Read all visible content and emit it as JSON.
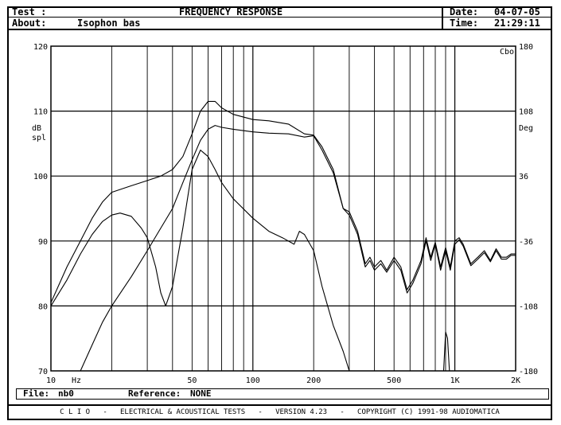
{
  "header": {
    "test_label": "Test :",
    "title": "FREQUENCY RESPONSE",
    "date_label": "Date:",
    "date_value": "04-07-05",
    "about_label": "About:",
    "about_value": "Isophon bas",
    "time_label": "Time:",
    "time_value": "21:29:11"
  },
  "footer": {
    "file_label": "File:",
    "file_value": "nb0",
    "reference_label": "Reference:",
    "reference_value": "NONE",
    "copyright": "C L I O   -   ELECTRICAL & ACOUSTICAL TESTS   -   VERSION 4.23   -   COPYRIGHT (C) 1991-98 AUDIOMATICA"
  },
  "chart_data": {
    "type": "line",
    "x_scale": "log",
    "xlim": [
      10,
      2000
    ],
    "ylim": [
      70,
      120
    ],
    "y2lim": [
      -180,
      180
    ],
    "ylabel": "dB spl",
    "y2label": "Deg",
    "y2_top_label": "Cbo",
    "x_unit_label": "Hz",
    "x_tick_labels": [
      {
        "x": 10,
        "label": "10"
      },
      {
        "x": 50,
        "label": "50"
      },
      {
        "x": 100,
        "label": "100"
      },
      {
        "x": 200,
        "label": "200"
      },
      {
        "x": 500,
        "label": "500"
      },
      {
        "x": 1000,
        "label": "1K"
      },
      {
        "x": 2000,
        "label": "2K"
      }
    ],
    "y_ticks": [
      70,
      80,
      90,
      100,
      110,
      120
    ],
    "y2_ticks": [
      -180,
      -108,
      -36,
      36,
      108,
      180
    ],
    "grid": true,
    "series": [
      {
        "values": [
          [
            10,
            80.5
          ],
          [
            12,
            86
          ],
          [
            14,
            90
          ],
          [
            16,
            93.5
          ],
          [
            18,
            96
          ],
          [
            20,
            97.5
          ],
          [
            25,
            98.5
          ],
          [
            30,
            99.3
          ],
          [
            35,
            100
          ],
          [
            40,
            101
          ],
          [
            45,
            103
          ],
          [
            50,
            106.5
          ],
          [
            55,
            110
          ],
          [
            60,
            111.5
          ],
          [
            65,
            111.5
          ],
          [
            70,
            110.5
          ],
          [
            80,
            109.5
          ],
          [
            100,
            108.7
          ],
          [
            120,
            108.5
          ],
          [
            150,
            108
          ],
          [
            180,
            106.5
          ],
          [
            200,
            106.3
          ],
          [
            220,
            104.5
          ],
          [
            250,
            101
          ],
          [
            280,
            95
          ],
          [
            300,
            94.5
          ],
          [
            330,
            91.5
          ],
          [
            360,
            86.5
          ],
          [
            380,
            87.5
          ],
          [
            400,
            86
          ],
          [
            430,
            87
          ],
          [
            460,
            85.5
          ],
          [
            500,
            87.5
          ],
          [
            540,
            86
          ],
          [
            580,
            82.5
          ],
          [
            620,
            84
          ],
          [
            680,
            87
          ],
          [
            720,
            90.5
          ],
          [
            760,
            87.5
          ],
          [
            800,
            89.8
          ],
          [
            850,
            86
          ],
          [
            900,
            89
          ],
          [
            950,
            86
          ],
          [
            1000,
            90
          ],
          [
            1050,
            90.5
          ],
          [
            1100,
            89.5
          ],
          [
            1200,
            86.5
          ],
          [
            1300,
            87.5
          ],
          [
            1400,
            88.5
          ],
          [
            1500,
            87
          ],
          [
            1600,
            88.8
          ],
          [
            1700,
            87.5
          ],
          [
            1800,
            87.5
          ],
          [
            1900,
            88
          ],
          [
            2000,
            88
          ]
        ]
      },
      {
        "values": [
          [
            14,
            70
          ],
          [
            16,
            74
          ],
          [
            18,
            77.5
          ],
          [
            20,
            80
          ],
          [
            25,
            84.5
          ],
          [
            30,
            88.5
          ],
          [
            35,
            92
          ],
          [
            40,
            95
          ],
          [
            45,
            99
          ],
          [
            50,
            102.5
          ],
          [
            55,
            105.5
          ],
          [
            60,
            107.2
          ],
          [
            65,
            107.8
          ],
          [
            70,
            107.5
          ],
          [
            80,
            107.2
          ],
          [
            100,
            106.8
          ],
          [
            120,
            106.6
          ],
          [
            150,
            106.5
          ],
          [
            180,
            106
          ],
          [
            200,
            106.2
          ],
          [
            220,
            104
          ],
          [
            250,
            100.5
          ],
          [
            280,
            95
          ],
          [
            300,
            94
          ],
          [
            330,
            91
          ],
          [
            360,
            86
          ],
          [
            380,
            87
          ],
          [
            400,
            85.5
          ],
          [
            430,
            86.5
          ],
          [
            460,
            85.2
          ],
          [
            500,
            87
          ],
          [
            540,
            85.5
          ],
          [
            580,
            82
          ],
          [
            620,
            83.5
          ],
          [
            680,
            86.5
          ],
          [
            720,
            90
          ],
          [
            760,
            87
          ],
          [
            800,
            89.5
          ],
          [
            850,
            85.5
          ],
          [
            900,
            88.5
          ],
          [
            950,
            85.5
          ],
          [
            1000,
            89.5
          ],
          [
            1050,
            90.2
          ],
          [
            1100,
            89.2
          ],
          [
            1200,
            86.2
          ],
          [
            1300,
            87.2
          ],
          [
            1400,
            88.2
          ],
          [
            1500,
            86.8
          ],
          [
            1600,
            88.5
          ],
          [
            1700,
            87.2
          ],
          [
            1800,
            87.2
          ],
          [
            1900,
            87.8
          ],
          [
            2000,
            87.8
          ]
        ]
      },
      {
        "values": [
          [
            10,
            80
          ],
          [
            12,
            84
          ],
          [
            14,
            88
          ],
          [
            16,
            91
          ],
          [
            18,
            93
          ],
          [
            20,
            94
          ],
          [
            22,
            94.3
          ],
          [
            25,
            93.8
          ],
          [
            28,
            92
          ],
          [
            30,
            90.5
          ],
          [
            33,
            86
          ],
          [
            35,
            82
          ],
          [
            37,
            80
          ],
          [
            40,
            83
          ],
          [
            45,
            92
          ],
          [
            50,
            101
          ],
          [
            55,
            104
          ],
          [
            60,
            103
          ],
          [
            65,
            101
          ],
          [
            70,
            99
          ],
          [
            80,
            96.5
          ],
          [
            100,
            93.5
          ],
          [
            120,
            91.5
          ],
          [
            140,
            90.5
          ],
          [
            160,
            89.5
          ],
          [
            170,
            91.5
          ],
          [
            180,
            91
          ],
          [
            200,
            88.5
          ],
          [
            220,
            83
          ],
          [
            250,
            77
          ],
          [
            280,
            73
          ],
          [
            300,
            70
          ]
        ]
      },
      {
        "values": [
          [
            880,
            70
          ],
          [
            900,
            76
          ],
          [
            920,
            75
          ],
          [
            940,
            70
          ]
        ]
      }
    ]
  }
}
